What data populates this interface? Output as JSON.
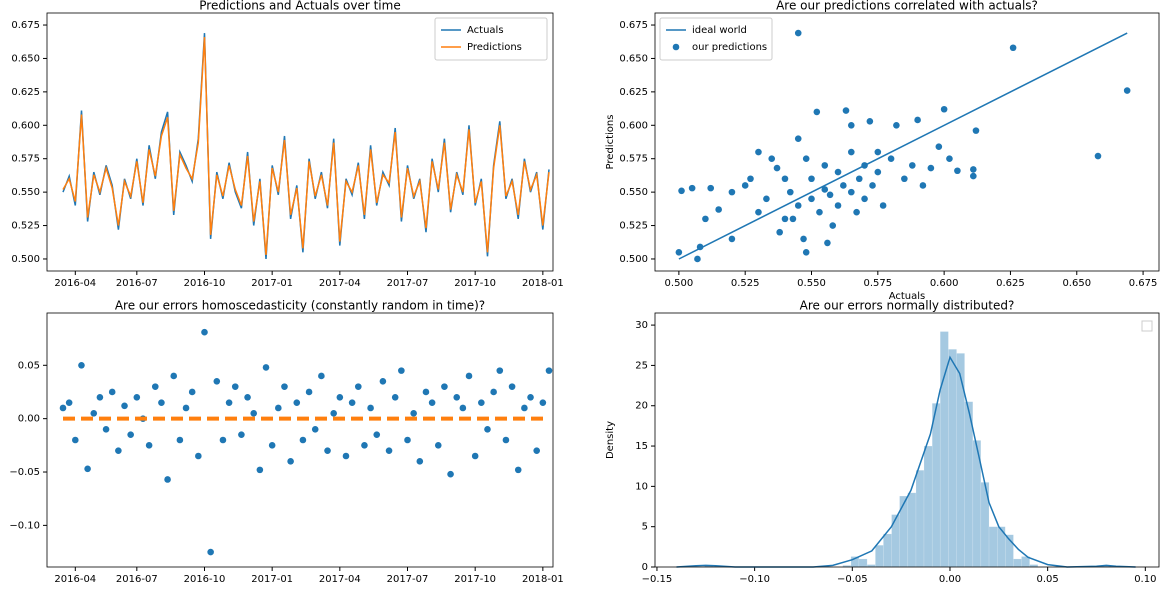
{
  "chart_data": [
    {
      "type": "line",
      "title": "Predictions and Actuals over time",
      "legend": "upper right",
      "categories": [
        null,
        null,
        "2016-04",
        null,
        null,
        null,
        null,
        null,
        null,
        null,
        null,
        null,
        "2016-07",
        null,
        null,
        null,
        null,
        null,
        null,
        null,
        null,
        null,
        null,
        "2016-10",
        null,
        null,
        null,
        null,
        null,
        null,
        null,
        null,
        null,
        null,
        "2017-01",
        null,
        null,
        null,
        null,
        null,
        null,
        null,
        null,
        null,
        null,
        "2017-04",
        null,
        null,
        null,
        null,
        null,
        null,
        null,
        null,
        null,
        null,
        "2017-07",
        null,
        null,
        null,
        null,
        null,
        null,
        null,
        null,
        null,
        null,
        "2017-10",
        null,
        null,
        null,
        null,
        null,
        null,
        null,
        null,
        null,
        null,
        "2018-01",
        null
      ],
      "series": [
        {
          "name": "Actuals",
          "color": "#1f77b4",
          "values": [
            0.55,
            0.562,
            0.54,
            0.611,
            0.528,
            0.565,
            0.548,
            0.57,
            0.555,
            0.522,
            0.56,
            0.545,
            0.575,
            0.54,
            0.585,
            0.56,
            0.595,
            0.61,
            0.533,
            0.58,
            0.57,
            0.558,
            0.59,
            0.669,
            0.515,
            0.565,
            0.545,
            0.572,
            0.55,
            0.538,
            0.58,
            0.525,
            0.56,
            0.5,
            0.57,
            0.548,
            0.592,
            0.53,
            0.555,
            0.505,
            0.575,
            0.545,
            0.565,
            0.538,
            0.59,
            0.51,
            0.56,
            0.548,
            0.572,
            0.53,
            0.585,
            0.54,
            0.565,
            0.555,
            0.598,
            0.528,
            0.57,
            0.545,
            0.56,
            0.52,
            0.575,
            0.55,
            0.59,
            0.535,
            0.565,
            0.548,
            0.6,
            0.54,
            0.56,
            0.502,
            0.57,
            0.603,
            0.545,
            0.56,
            0.53,
            0.575,
            0.55,
            0.565,
            0.522,
            0.567
          ]
        },
        {
          "name": "Predictions",
          "color": "#ff7f0e",
          "values": [
            0.552,
            0.56,
            0.543,
            0.608,
            0.531,
            0.563,
            0.55,
            0.568,
            0.553,
            0.525,
            0.558,
            0.547,
            0.573,
            0.542,
            0.582,
            0.562,
            0.592,
            0.606,
            0.536,
            0.578,
            0.568,
            0.56,
            0.587,
            0.666,
            0.518,
            0.563,
            0.547,
            0.57,
            0.552,
            0.54,
            0.577,
            0.528,
            0.558,
            0.503,
            0.568,
            0.55,
            0.589,
            0.533,
            0.553,
            0.508,
            0.573,
            0.547,
            0.563,
            0.54,
            0.587,
            0.513,
            0.558,
            0.55,
            0.57,
            0.533,
            0.582,
            0.542,
            0.563,
            0.557,
            0.595,
            0.531,
            0.568,
            0.547,
            0.558,
            0.523,
            0.573,
            0.552,
            0.587,
            0.537,
            0.563,
            0.55,
            0.597,
            0.542,
            0.558,
            0.505,
            0.568,
            0.6,
            0.547,
            0.558,
            0.533,
            0.573,
            0.552,
            0.563,
            0.525,
            0.565
          ]
        }
      ],
      "ylim": [
        0.491,
        0.684
      ],
      "yticks": [
        {
          "value": 0.5,
          "label": "0.500"
        },
        {
          "value": 0.525,
          "label": "0.525"
        },
        {
          "value": 0.55,
          "label": "0.550"
        },
        {
          "value": 0.575,
          "label": "0.575"
        },
        {
          "value": 0.6,
          "label": "0.600"
        },
        {
          "value": 0.625,
          "label": "0.625"
        },
        {
          "value": 0.65,
          "label": "0.650"
        },
        {
          "value": 0.675,
          "label": "0.675"
        }
      ]
    },
    {
      "type": "scatter",
      "title": "Are our predictions correlated with actuals?",
      "xlabel": "Actuals",
      "ylabel": "Predictions",
      "legend": "upper left",
      "series": [
        {
          "name": "ideal world",
          "type": "line",
          "color": "#1f77b4",
          "x": [
            0.5,
            0.669
          ],
          "values": [
            0.5,
            0.669
          ]
        },
        {
          "name": "our predictions",
          "type": "scatter",
          "color": "#1f77b4",
          "x": [
            0.545,
            0.626,
            0.669,
            0.658,
            0.5,
            0.507,
            0.501,
            0.505,
            0.51,
            0.512,
            0.515,
            0.508,
            0.52,
            0.52,
            0.525,
            0.527,
            0.53,
            0.53,
            0.533,
            0.535,
            0.537,
            0.538,
            0.54,
            0.54,
            0.542,
            0.545,
            0.545,
            0.547,
            0.548,
            0.55,
            0.55,
            0.552,
            0.553,
            0.555,
            0.555,
            0.557,
            0.558,
            0.56,
            0.56,
            0.562,
            0.563,
            0.565,
            0.565,
            0.567,
            0.568,
            0.57,
            0.57,
            0.572,
            0.573,
            0.575,
            0.577,
            0.58,
            0.582,
            0.585,
            0.588,
            0.59,
            0.592,
            0.595,
            0.598,
            0.6,
            0.602,
            0.605,
            0.611,
            0.611,
            0.612,
            0.548,
            0.556,
            0.543,
            0.565,
            0.575
          ],
          "values": [
            0.669,
            0.658,
            0.626,
            0.577,
            0.505,
            0.5,
            0.551,
            0.553,
            0.53,
            0.553,
            0.537,
            0.509,
            0.515,
            0.55,
            0.555,
            0.56,
            0.58,
            0.535,
            0.545,
            0.575,
            0.568,
            0.52,
            0.56,
            0.53,
            0.55,
            0.54,
            0.59,
            0.515,
            0.575,
            0.56,
            0.545,
            0.61,
            0.535,
            0.552,
            0.57,
            0.548,
            0.525,
            0.565,
            0.54,
            0.555,
            0.611,
            0.58,
            0.55,
            0.535,
            0.56,
            0.57,
            0.545,
            0.603,
            0.555,
            0.565,
            0.54,
            0.575,
            0.6,
            0.56,
            0.57,
            0.604,
            0.555,
            0.568,
            0.584,
            0.612,
            0.575,
            0.566,
            0.567,
            0.562,
            0.596,
            0.505,
            0.512,
            0.53,
            0.6,
            0.58
          ]
        }
      ],
      "xlim": [
        0.491,
        0.681
      ],
      "ylim": [
        0.491,
        0.684
      ],
      "xticks": [
        {
          "value": 0.5,
          "label": "0.500"
        },
        {
          "value": 0.525,
          "label": "0.525"
        },
        {
          "value": 0.55,
          "label": "0.550"
        },
        {
          "value": 0.575,
          "label": "0.575"
        },
        {
          "value": 0.6,
          "label": "0.600"
        },
        {
          "value": 0.625,
          "label": "0.625"
        },
        {
          "value": 0.65,
          "label": "0.650"
        },
        {
          "value": 0.675,
          "label": "0.675"
        }
      ],
      "yticks": [
        {
          "value": 0.5,
          "label": "0.500"
        },
        {
          "value": 0.525,
          "label": "0.525"
        },
        {
          "value": 0.55,
          "label": "0.550"
        },
        {
          "value": 0.575,
          "label": "0.575"
        },
        {
          "value": 0.6,
          "label": "0.600"
        },
        {
          "value": 0.625,
          "label": "0.625"
        },
        {
          "value": 0.65,
          "label": "0.650"
        },
        {
          "value": 0.675,
          "label": "0.675"
        }
      ]
    },
    {
      "type": "scatter",
      "title": "Are our errors homoscedasticity (constantly random in time)?",
      "categories": [
        null,
        null,
        "2016-04",
        null,
        null,
        null,
        null,
        null,
        null,
        null,
        null,
        null,
        "2016-07",
        null,
        null,
        null,
        null,
        null,
        null,
        null,
        null,
        null,
        null,
        "2016-10",
        null,
        null,
        null,
        null,
        null,
        null,
        null,
        null,
        null,
        null,
        "2017-01",
        null,
        null,
        null,
        null,
        null,
        null,
        null,
        null,
        null,
        null,
        "2017-04",
        null,
        null,
        null,
        null,
        null,
        null,
        null,
        null,
        null,
        null,
        "2017-07",
        null,
        null,
        null,
        null,
        null,
        null,
        null,
        null,
        null,
        null,
        "2017-10",
        null,
        null,
        null,
        null,
        null,
        null,
        null,
        null,
        null,
        null,
        "2018-01",
        null
      ],
      "series": [
        {
          "color": "#1f77b4",
          "values": [
            0.01,
            0.015,
            -0.02,
            0.05,
            -0.047,
            0.005,
            0.02,
            -0.01,
            0.025,
            -0.03,
            0.012,
            -0.015,
            0.02,
            0.0,
            -0.025,
            0.03,
            0.015,
            -0.057,
            0.04,
            -0.02,
            0.01,
            0.025,
            -0.035,
            0.081,
            -0.125,
            0.035,
            -0.02,
            0.015,
            0.03,
            -0.015,
            0.02,
            0.005,
            -0.048,
            0.048,
            -0.025,
            0.01,
            0.03,
            -0.04,
            0.015,
            -0.02,
            0.025,
            -0.01,
            0.04,
            -0.03,
            0.005,
            0.02,
            -0.035,
            0.015,
            0.03,
            -0.025,
            0.01,
            -0.015,
            0.035,
            -0.03,
            0.02,
            0.045,
            -0.02,
            0.005,
            -0.04,
            0.025,
            0.015,
            -0.025,
            0.03,
            -0.052,
            0.02,
            0.01,
            0.04,
            -0.035,
            0.015,
            -0.01,
            0.025,
            0.045,
            -0.02,
            0.03,
            -0.048,
            0.01,
            0.02,
            -0.03,
            0.015,
            0.045
          ]
        }
      ],
      "reference_line": {
        "value": 0,
        "color": "#ff7f0e"
      },
      "ylim": [
        -0.139,
        0.099
      ],
      "yticks": [
        {
          "value": -0.1,
          "label": "−0.10"
        },
        {
          "value": -0.05,
          "label": "−0.05"
        },
        {
          "value": 0,
          "label": "0.00"
        },
        0.05
      ]
    },
    {
      "type": "histogram",
      "title": "Are our errors normally distributed?",
      "ylabel": "Density",
      "color": "#1f77b4",
      "opacity": 0.4,
      "bins": [
        -0.1256,
        -0.1214,
        -0.1173,
        -0.1131,
        -0.109,
        -0.1048,
        -0.1006,
        -0.0965,
        -0.0923,
        -0.0882,
        -0.084,
        -0.0798,
        -0.0757,
        -0.0715,
        -0.0674,
        -0.0632,
        -0.059,
        -0.0549,
        -0.0507,
        -0.0466,
        -0.0424,
        -0.0382,
        -0.0341,
        -0.0299,
        -0.0258,
        -0.0216,
        -0.0174,
        -0.0133,
        -0.0091,
        -0.005,
        -0.0008,
        0.0034,
        0.0075,
        0.0117,
        0.0158,
        0.02,
        0.0242,
        0.0283,
        0.0325,
        0.0366,
        0.0408,
        0.045,
        0.0491,
        0.0533,
        0.0574,
        0.0616,
        0.0658,
        0.0699,
        0.0741,
        0.0782,
        0.0824
      ],
      "counts": [
        0.2,
        0,
        0,
        0,
        0,
        0,
        0,
        0,
        0,
        0,
        0,
        0,
        0,
        0,
        0,
        0,
        0,
        0.2,
        1.3,
        1.0,
        0.3,
        2.7,
        4.1,
        6.5,
        8.8,
        9.2,
        12.0,
        15.0,
        20.3,
        29.2,
        27.0,
        26.5,
        20.5,
        15.7,
        10.5,
        5.0,
        5.0,
        4.0,
        1.0,
        1.3,
        0.3,
        0,
        0,
        0,
        0,
        0,
        0,
        0,
        0,
        0.2
      ],
      "kde": {
        "color": "#1f77b4",
        "x": [
          -0.14,
          -0.13,
          -0.125,
          -0.12,
          -0.11,
          -0.07,
          -0.06,
          -0.05,
          -0.04,
          -0.03,
          -0.02,
          -0.01,
          -0.005,
          0,
          0.005,
          0.01,
          0.015,
          0.02,
          0.025,
          0.03,
          0.035,
          0.04,
          0.05,
          0.06,
          0.075,
          0.08,
          0.085,
          0.095
        ],
        "values": [
          0,
          0.15,
          0.2,
          0.15,
          0,
          0,
          0.2,
          0.9,
          2,
          5,
          9.5,
          16.5,
          22,
          26,
          24,
          19,
          13.5,
          8,
          5,
          3.5,
          2.2,
          1.2,
          0.3,
          0,
          0.1,
          0.2,
          0.1,
          0
        ]
      },
      "xlim": [
        -0.151,
        0.107
      ],
      "ylim": [
        0,
        31.5
      ],
      "xticks": [
        {
          "value": -0.15,
          "label": "−0.15"
        },
        {
          "value": -0.1,
          "label": "−0.10"
        },
        {
          "value": -0.05,
          "label": "−0.05"
        },
        {
          "value": 0,
          "label": "0.00"
        },
        0.05,
        {
          "value": 0.1,
          "label": "0.10"
        }
      ],
      "yticks": [
        0,
        5,
        10,
        15,
        20,
        25,
        30
      ]
    }
  ]
}
